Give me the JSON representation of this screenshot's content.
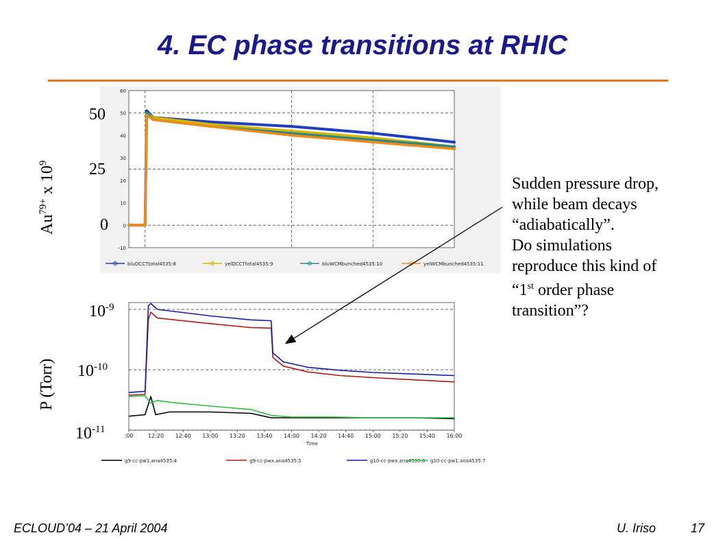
{
  "slide": {
    "title": "4. EC phase transitions at RHIC",
    "accent_color": "#e8751a",
    "title_color": "#1a1a8c"
  },
  "annotation": {
    "line1": "Sudden pressure drop,",
    "line2": "while beam decays",
    "line3": "“adiabatically”.",
    "line4": "Do simulations",
    "line5": "reproduce this kind of",
    "line6_pre": "“1",
    "line6_sup": "st",
    "line6_post": " order phase",
    "line7": "transition”?"
  },
  "footer": {
    "left": "ECLOUD’04 – 21 April 2004",
    "author": "U. Iriso",
    "page": "17"
  },
  "chart_data": [
    {
      "type": "line",
      "ylabel_main": "Au",
      "ylabel_sup1": "79+",
      "ylabel_mid": " x 10",
      "ylabel_sup2": "9",
      "big_ticks": [
        "50",
        "25",
        "0"
      ],
      "y_ticks": [
        "60",
        "50",
        "40",
        "30",
        "20",
        "10",
        "0",
        "-10"
      ],
      "ylim": [
        -10,
        60
      ],
      "xlim": [
        12.0,
        16.0
      ],
      "grid": true,
      "legend": "bottom",
      "series": [
        {
          "name": "bluDCCTtotal4535:8",
          "color": "#1f3fbf",
          "x": [
            12.0,
            12.15,
            12.2,
            12.22,
            12.3,
            13.0,
            14.0,
            15.0,
            16.0
          ],
          "y": [
            0,
            0,
            0,
            51,
            48,
            46,
            44,
            41,
            37
          ]
        },
        {
          "name": "yelDCCTtotal4535:9",
          "color": "#d4b800",
          "x": [
            12.0,
            12.15,
            12.2,
            12.22,
            12.3,
            13.0,
            14.0,
            15.0,
            16.0
          ],
          "y": [
            0,
            0,
            0,
            50,
            48,
            45,
            42,
            39,
            35
          ]
        },
        {
          "name": "bluWCMbunched4535:10",
          "color": "#2a8a8a",
          "x": [
            12.0,
            12.15,
            12.2,
            12.22,
            12.3,
            13.0,
            14.0,
            15.0,
            16.0
          ],
          "y": [
            0,
            0,
            0,
            50,
            47,
            44,
            41,
            38,
            35
          ]
        },
        {
          "name": "yelWCMbunched4535:11",
          "color": "#f28a1a",
          "x": [
            12.0,
            12.15,
            12.2,
            12.22,
            12.3,
            13.0,
            14.0,
            15.0,
            16.0
          ],
          "y": [
            0,
            0,
            0,
            49,
            47,
            44,
            40,
            37,
            34
          ]
        }
      ]
    },
    {
      "type": "line",
      "ylabel": "P (Torr)",
      "yscale": "log",
      "big_ticks": [
        {
          "base": "10",
          "exp": "-9"
        },
        {
          "base": "10",
          "exp": "-10"
        },
        {
          "base": "10",
          "exp": "-11"
        }
      ],
      "xlabel": "Time",
      "x_ticks": [
        ":00",
        "12:20",
        "12:40",
        "13:00",
        "13:20",
        "13:40",
        "14:00",
        "14:20",
        "14:40",
        "15:00",
        "15:20",
        "15:40",
        "16:00"
      ],
      "ylim": [
        1e-11,
        1.3e-09
      ],
      "xlim": [
        12.0,
        16.0
      ],
      "grid": true,
      "legend": "bottom",
      "series": [
        {
          "name": "g9-cc-pw1.ana4535:4",
          "color": "#000000",
          "x": [
            12.0,
            12.2,
            12.27,
            12.33,
            12.5,
            13.0,
            13.5,
            13.75,
            14.0,
            14.5,
            15.0,
            15.5,
            16.0
          ],
          "y": [
            1.7e-11,
            1.8e-11,
            3.6e-11,
            1.8e-11,
            2e-11,
            2e-11,
            1.9e-11,
            1.6e-11,
            1.6e-11,
            1.6e-11,
            1.6e-11,
            1.6e-11,
            1.55e-11
          ]
        },
        {
          "name": "g9-cc-pwx.ana4535:5",
          "color": "#b01818",
          "x": [
            12.0,
            12.2,
            12.24,
            12.27,
            12.35,
            13.0,
            13.5,
            13.75,
            13.77,
            13.9,
            14.2,
            14.6,
            15.0,
            15.5,
            16.0
          ],
          "y": [
            3.8e-11,
            3.9e-11,
            6.8e-10,
            9e-10,
            7.2e-10,
            5.8e-10,
            5e-10,
            4.9e-10,
            1.6e-10,
            1.15e-10,
            9.2e-11,
            8e-11,
            7.4e-11,
            6.8e-11,
            6.3e-11
          ]
        },
        {
          "name": "g10-cc-pwx.ana4535:6",
          "color": "#1a1aa8",
          "x": [
            12.0,
            12.2,
            12.24,
            12.27,
            12.35,
            13.0,
            13.5,
            13.75,
            13.77,
            13.9,
            14.2,
            14.6,
            15.0,
            15.5,
            16.0
          ],
          "y": [
            4.2e-11,
            4.4e-11,
            1.15e-09,
            1.25e-09,
            1e-09,
            7.8e-10,
            6.7e-10,
            6.5e-10,
            1.9e-10,
            1.35e-10,
            1.1e-10,
            9.8e-11,
            9e-11,
            8.5e-11,
            8e-11
          ]
        },
        {
          "name": "g10-cc-pw1.ana4535:7",
          "color": "#2fbf3f",
          "x": [
            12.0,
            12.2,
            12.27,
            12.35,
            12.5,
            13.0,
            13.5,
            13.75,
            14.0,
            14.5,
            15.0,
            15.5,
            16.0
          ],
          "y": [
            3.6e-11,
            3.7e-11,
            2.8e-11,
            3.1e-11,
            2.9e-11,
            2.5e-11,
            2.2e-11,
            1.75e-11,
            1.65e-11,
            1.65e-11,
            1.6e-11,
            1.6e-11,
            1.6e-11
          ]
        }
      ]
    }
  ]
}
